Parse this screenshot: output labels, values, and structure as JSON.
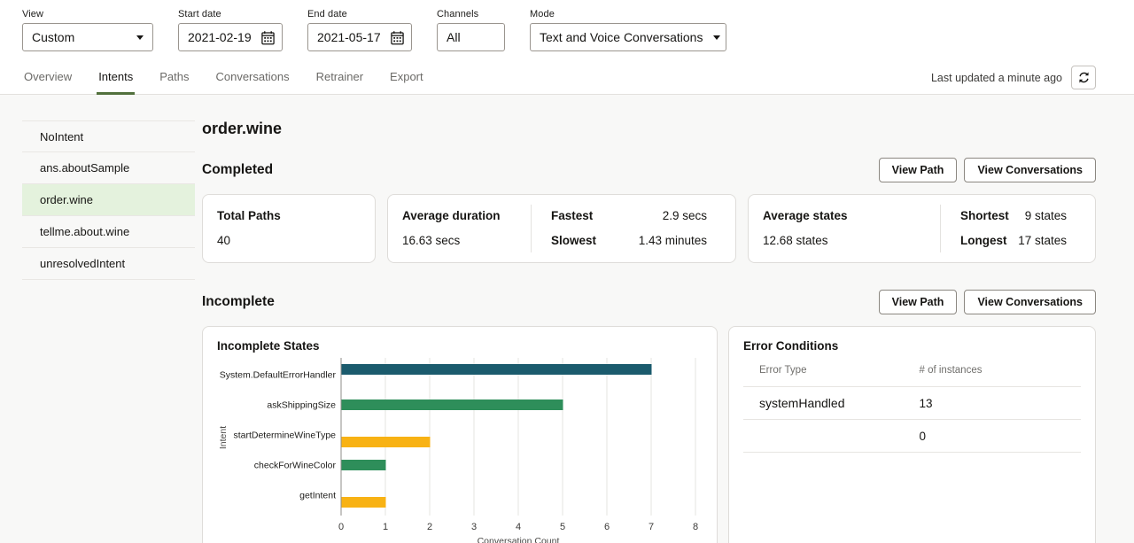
{
  "filters": {
    "view": {
      "label": "View",
      "value": "Custom"
    },
    "start_date": {
      "label": "Start date",
      "value": "2021-02-19"
    },
    "end_date": {
      "label": "End date",
      "value": "2021-05-17"
    },
    "channels": {
      "label": "Channels",
      "value": "All"
    },
    "mode": {
      "label": "Mode",
      "value": "Text and Voice Conversations"
    }
  },
  "tabs": [
    {
      "label": "Overview",
      "active": false
    },
    {
      "label": "Intents",
      "active": true
    },
    {
      "label": "Paths",
      "active": false
    },
    {
      "label": "Conversations",
      "active": false
    },
    {
      "label": "Retrainer",
      "active": false
    },
    {
      "label": "Export",
      "active": false
    }
  ],
  "last_updated": "Last updated a minute ago",
  "sidebar": {
    "items": [
      {
        "label": "NoIntent",
        "selected": false
      },
      {
        "label": "ans.aboutSample",
        "selected": false
      },
      {
        "label": "order.wine",
        "selected": true
      },
      {
        "label": "tellme.about.wine",
        "selected": false
      },
      {
        "label": "unresolvedIntent",
        "selected": false
      }
    ]
  },
  "main": {
    "title": "order.wine",
    "completed": {
      "heading": "Completed",
      "view_path_label": "View Path",
      "view_conversations_label": "View Conversations",
      "total_paths": {
        "label": "Total Paths",
        "value": "40"
      },
      "duration": {
        "label": "Average duration",
        "value": "16.63 secs",
        "fastest_label": "Fastest",
        "fastest_value": "2.9 secs",
        "slowest_label": "Slowest",
        "slowest_value": "1.43 minutes"
      },
      "states": {
        "label": "Average states",
        "value": "12.68 states",
        "shortest_label": "Shortest",
        "shortest_value": "9 states",
        "longest_label": "Longest",
        "longest_value": "17 states"
      }
    },
    "incomplete": {
      "heading": "Incomplete",
      "view_path_label": "View Path",
      "view_conversations_label": "View Conversations",
      "errors": {
        "title": "Error Conditions",
        "columns": {
          "type": "Error Type",
          "instances": "# of instances"
        },
        "rows": [
          {
            "error_type": "systemHandled",
            "instances": "13"
          },
          {
            "error_type": "",
            "instances": "0"
          }
        ]
      }
    }
  },
  "chart_data": {
    "type": "bar",
    "orientation": "horizontal",
    "title": "Incomplete States",
    "categories": [
      "System.DefaultErrorHandler",
      "askShippingSize",
      "startDetermineWineType",
      "checkForWineColor",
      "getIntent"
    ],
    "values": [
      7,
      5,
      2,
      1,
      1
    ],
    "bar_colors": [
      "#1b5b6d",
      "#2e8e5a",
      "#f8b214",
      "#2e8e5a",
      "#f8b214"
    ],
    "bar_offsets": [
      -6,
      0,
      8,
      0,
      8
    ],
    "xlabel": "Conversation Count",
    "ylabel": "Intent",
    "xlim": [
      0,
      8
    ],
    "xticks": [
      0,
      1,
      2,
      3,
      4,
      5,
      6,
      7,
      8
    ],
    "grid": true,
    "legend": "none"
  },
  "colors": {
    "accent_green": "#51703c",
    "selected_item_bg": "#e4f2dd",
    "bar_teal": "#1b5b6d",
    "bar_green": "#2e8e5a",
    "bar_amber": "#f8b214",
    "content_bg": "#f8f8f7"
  }
}
